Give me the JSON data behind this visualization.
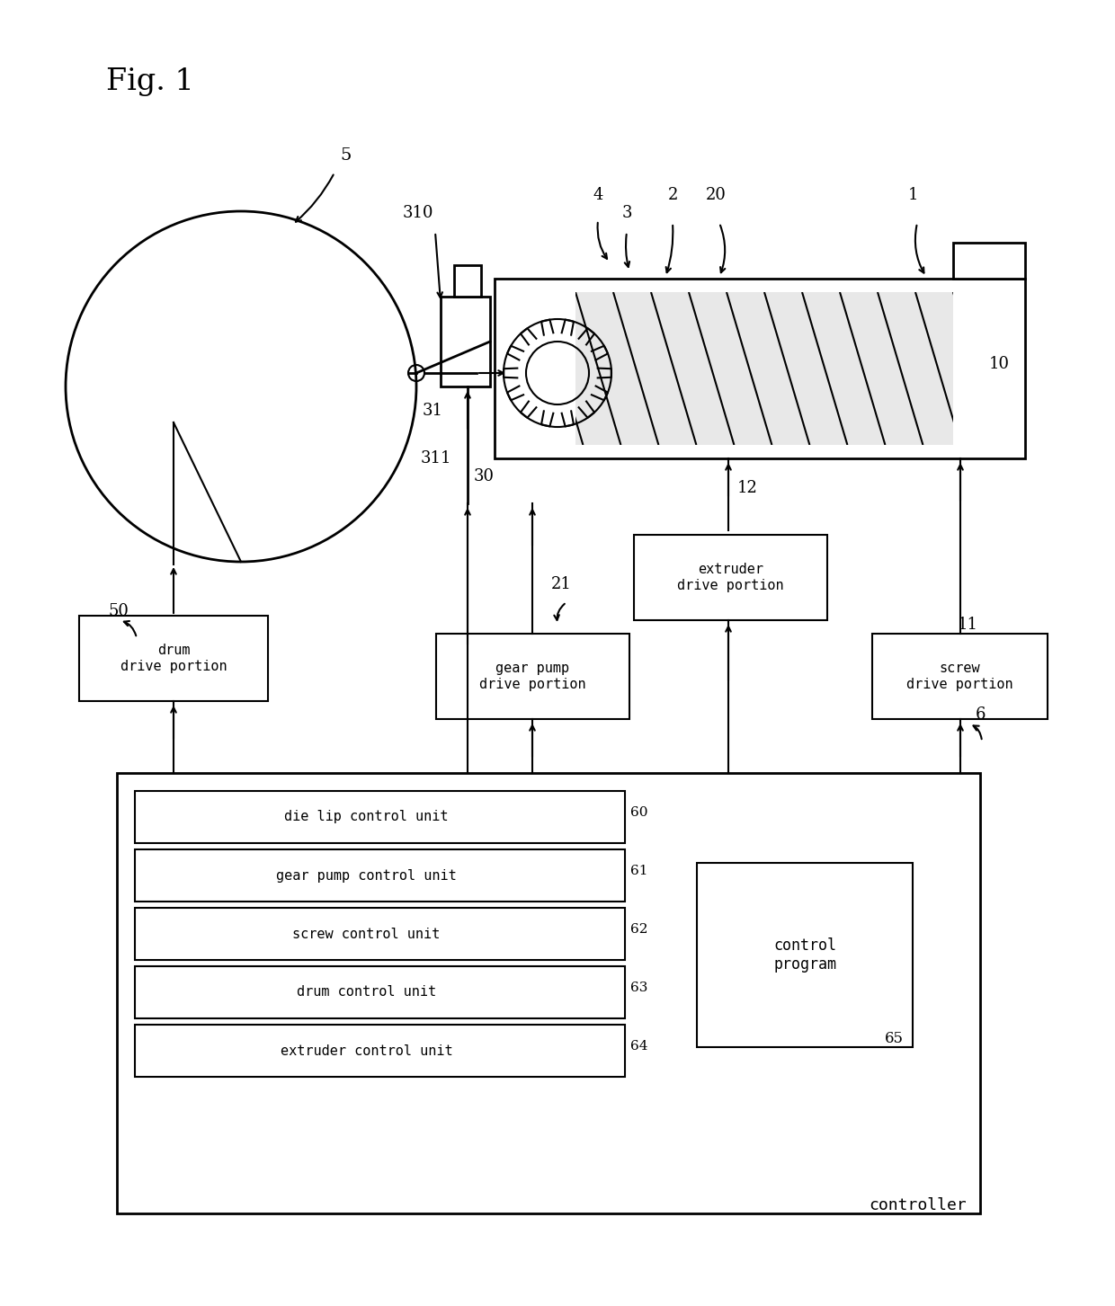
{
  "bg_color": "#ffffff",
  "labels": {
    "fig_title": "Fig. 1",
    "num_5": "5",
    "num_310": "310",
    "num_4": "4",
    "num_3": "3",
    "num_2": "2",
    "num_20": "20",
    "num_1": "1",
    "num_10": "10",
    "num_31": "31",
    "num_311": "311",
    "num_30": "30",
    "num_12": "12",
    "num_21": "21",
    "num_11": "11",
    "num_6": "6",
    "num_50": "50",
    "box_drum": "drum\ndrive portion",
    "box_extruder": "extruder\ndrive portion",
    "box_gear": "gear pump\ndrive portion",
    "box_screw": "screw\ndrive portion",
    "box_controller": "controller",
    "unit_60": "die lip control unit",
    "unit_61": "gear pump control unit",
    "unit_62": "screw control unit",
    "unit_63": "drum control unit",
    "unit_64": "extruder control unit",
    "num_60": "60",
    "num_61": "61",
    "num_62": "62",
    "num_63": "63",
    "num_64": "64",
    "num_65": "65",
    "box_control_prog": "control\nprogram"
  }
}
